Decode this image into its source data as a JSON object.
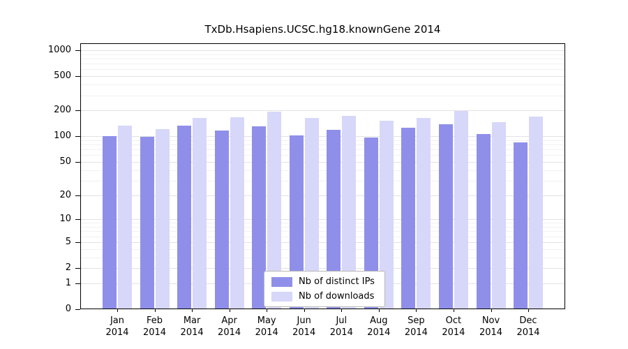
{
  "title": "TxDb.Hsapiens.UCSC.hg18.knownGene 2014",
  "colors": {
    "ips": "#8f8fea",
    "downloads": "#d7d7f9",
    "grid_major": "#e2e2e2",
    "grid_minor": "#f1f1f1",
    "axis": "#000000"
  },
  "legend": {
    "items": [
      {
        "label": "Nb of distinct IPs",
        "color_key": "ips"
      },
      {
        "label": "Nb of downloads",
        "color_key": "downloads"
      }
    ]
  },
  "chart_data": {
    "type": "bar",
    "title": "TxDb.Hsapiens.UCSC.hg18.knownGene 2014",
    "categories": [
      "Jan",
      "Feb",
      "Mar",
      "Apr",
      "May",
      "Jun",
      "Jul",
      "Aug",
      "Sep",
      "Oct",
      "Nov",
      "Dec"
    ],
    "year": "2014",
    "series": [
      {
        "name": "Nb of distinct IPs",
        "values": [
          101,
          98,
          132,
          117,
          130,
          103,
          119,
          97,
          126,
          138,
          107,
          84
        ]
      },
      {
        "name": "Nb of downloads",
        "values": [
          133,
          122,
          163,
          168,
          193,
          163,
          174,
          152,
          163,
          196,
          147,
          170
        ]
      }
    ],
    "y_ticks": [
      0,
      1,
      2,
      5,
      10,
      20,
      50,
      100,
      200,
      500,
      1000
    ],
    "y_scale": "log1p",
    "ylim": [
      0,
      1000
    ],
    "grid": true,
    "legend_position": "lower center"
  }
}
